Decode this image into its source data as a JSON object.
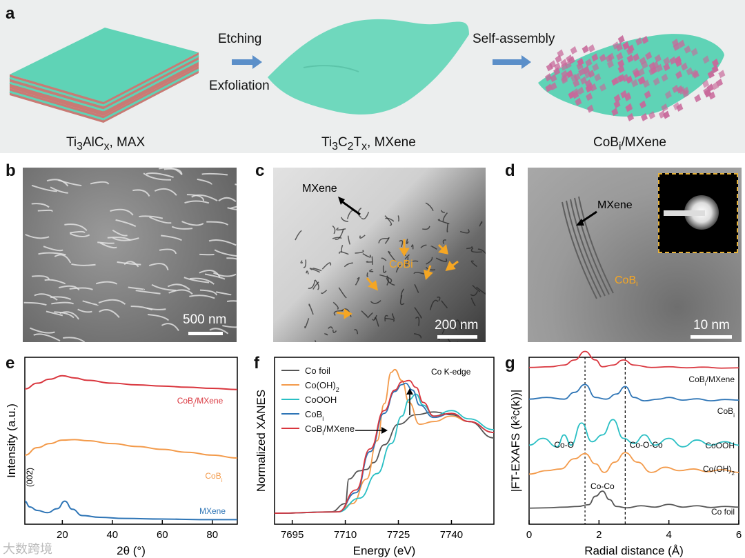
{
  "panel_labels": {
    "a": "a",
    "b": "b",
    "c": "c",
    "d": "d",
    "e": "e",
    "f": "f",
    "g": "g"
  },
  "schematic": {
    "step1_top": "Etching",
    "step1_bottom": "Exfoliation",
    "step2_top": "Self-assembly",
    "stage1": {
      "main": "Ti",
      "s1": "3",
      "mid": "AlC",
      "s2": "x",
      "tail": ", MAX"
    },
    "stage2": {
      "main": "Ti",
      "s1": "3",
      "mid": "C",
      "s2": "2",
      "mid2": "T",
      "s3": "x",
      "tail": ", MXene"
    },
    "stage3": {
      "main": "CoB",
      "s1": "i",
      "tail": "/MXene"
    },
    "colors": {
      "layer_teal": "#5fd3b6",
      "layer_red": "#c97a74",
      "sheet": "#6fd8bd",
      "particles": "#c8689a",
      "arrow": "#5b8fc9"
    }
  },
  "sem": {
    "scale": "500 nm"
  },
  "tem": {
    "annot_mxene": "MXene",
    "annot_cobi": "CoBi",
    "scale": "200 nm"
  },
  "hrtem": {
    "annot_mxene": "MXene",
    "annot_cobi_main": "CoB",
    "annot_cobi_sub": "i",
    "scale": "10 nm"
  },
  "watermark": "大数跨境",
  "chart_data": [
    {
      "panel": "e",
      "type": "line",
      "xlabel": "2θ (°)",
      "ylabel": "Intensity (a.u.)",
      "xlim": [
        5,
        90
      ],
      "xticks": [
        20,
        40,
        60,
        80
      ],
      "yticks": [],
      "annotation": "(002)",
      "series": [
        {
          "name": "CoB",
          "sub": "i",
          "suffix": "/MXene",
          "color": "#d9353d",
          "x": [
            5,
            10,
            15,
            20,
            25,
            30,
            40,
            50,
            60,
            70,
            80,
            90
          ],
          "y": [
            2.35,
            2.45,
            2.52,
            2.58,
            2.54,
            2.5,
            2.45,
            2.42,
            2.4,
            2.38,
            2.36,
            2.34
          ]
        },
        {
          "name": "CoB",
          "sub": "i",
          "suffix": "",
          "color": "#f39a4a",
          "x": [
            5,
            10,
            15,
            20,
            25,
            30,
            40,
            50,
            60,
            70,
            80,
            90
          ],
          "y": [
            1.2,
            1.33,
            1.4,
            1.46,
            1.47,
            1.45,
            1.4,
            1.35,
            1.3,
            1.25,
            1.2,
            1.15
          ]
        },
        {
          "name": "MXene",
          "sub": "",
          "suffix": "",
          "color": "#2e75b6",
          "x": [
            5,
            7,
            10,
            14,
            18,
            21,
            24,
            28,
            35,
            45,
            60,
            75,
            90
          ],
          "y": [
            0.4,
            0.3,
            0.24,
            0.2,
            0.27,
            0.4,
            0.26,
            0.15,
            0.12,
            0.1,
            0.09,
            0.08,
            0.08
          ]
        }
      ]
    },
    {
      "panel": "f",
      "type": "line",
      "xlabel": "Energy (eV)",
      "ylabel": "Normalized XANES",
      "xlim": [
        7690,
        7752
      ],
      "xticks": [
        7695,
        7710,
        7725,
        7740
      ],
      "yticks": [],
      "annotation": "Co K-edge",
      "series": [
        {
          "name": "Co foil",
          "color": "#555555",
          "x": [
            7690,
            7706,
            7710,
            7711,
            7714,
            7716,
            7718,
            7721,
            7725,
            7730,
            7735,
            7740,
            7745,
            7752
          ],
          "y": [
            0.05,
            0.06,
            0.12,
            0.3,
            0.36,
            0.37,
            0.42,
            0.55,
            0.7,
            0.77,
            0.79,
            0.77,
            0.72,
            0.6
          ]
        },
        {
          "name": "Co(OH)",
          "sub": "2",
          "color": "#f39a4a",
          "x": [
            7690,
            7708,
            7712,
            7716,
            7719,
            7721,
            7723,
            7724,
            7726,
            7728,
            7731,
            7735,
            7740,
            7745,
            7752
          ],
          "y": [
            0.05,
            0.06,
            0.12,
            0.3,
            0.58,
            0.85,
            1.08,
            1.1,
            1.02,
            0.86,
            0.7,
            0.72,
            0.76,
            0.72,
            0.64
          ]
        },
        {
          "name": "CoOOH",
          "color": "#29bfc4",
          "x": [
            7690,
            7708,
            7714,
            7719,
            7723,
            7726,
            7728,
            7730,
            7732,
            7735,
            7740,
            7745,
            7752
          ],
          "y": [
            0.05,
            0.06,
            0.16,
            0.34,
            0.56,
            0.76,
            0.88,
            0.92,
            0.84,
            0.76,
            0.8,
            0.74,
            0.66
          ]
        },
        {
          "name": "CoB",
          "sub": "i",
          "color": "#2e75b6",
          "x": [
            7690,
            7708,
            7713,
            7717,
            7721,
            7724,
            7726,
            7727,
            7729,
            7731,
            7735,
            7740,
            7745,
            7752
          ],
          "y": [
            0.05,
            0.06,
            0.2,
            0.5,
            0.78,
            0.94,
            0.99,
            1.0,
            0.95,
            0.84,
            0.75,
            0.78,
            0.72,
            0.64
          ]
        },
        {
          "name": "CoB",
          "sub": "i",
          "suffix": "/MXene",
          "color": "#d9353d",
          "x": [
            7690,
            7708,
            7713,
            7717,
            7721,
            7724,
            7726,
            7728,
            7730,
            7732,
            7735,
            7740,
            7745,
            7752
          ],
          "y": [
            0.05,
            0.06,
            0.22,
            0.52,
            0.8,
            0.95,
            1.01,
            1.02,
            0.97,
            0.86,
            0.76,
            0.78,
            0.72,
            0.64
          ]
        }
      ]
    },
    {
      "panel": "g",
      "type": "line",
      "xlabel": "Radial distance (Å)",
      "ylabel": "|FT-EXAFS (k³c(k))|",
      "xlim": [
        0,
        6
      ],
      "xticks": [
        0,
        2,
        4,
        6
      ],
      "yticks": [],
      "vlines": [
        1.6,
        2.75
      ],
      "annotations": [
        {
          "text": "Co-O",
          "x": 1.0
        },
        {
          "text": "Co-O-Co",
          "x": 3.35
        },
        {
          "text": "Co-Co",
          "x": 2.1
        }
      ],
      "series": [
        {
          "name": "CoB",
          "sub": "i",
          "suffix": "/MXene",
          "color": "#d9353d",
          "x": [
            0,
            0.6,
            1.0,
            1.3,
            1.6,
            1.9,
            2.1,
            2.4,
            2.7,
            3.0,
            3.5,
            4.0,
            4.5,
            5.0,
            5.5,
            6.0
          ],
          "y": [
            4.48,
            4.5,
            4.55,
            4.7,
            4.95,
            4.7,
            4.5,
            4.55,
            4.7,
            4.55,
            4.48,
            4.5,
            4.47,
            4.49,
            4.46,
            4.47
          ]
        },
        {
          "name": "CoB",
          "sub": "i",
          "color": "#2e75b6",
          "x": [
            0,
            0.5,
            1.0,
            1.3,
            1.6,
            1.9,
            2.2,
            2.5,
            2.75,
            3.0,
            3.3,
            3.7,
            4.0,
            4.4,
            4.8,
            5.2,
            5.6,
            6.0
          ],
          "y": [
            3.55,
            3.6,
            3.55,
            3.75,
            3.98,
            3.6,
            3.55,
            3.7,
            3.92,
            3.6,
            3.5,
            3.55,
            3.6,
            3.52,
            3.56,
            3.5,
            3.54,
            3.52
          ]
        },
        {
          "name": "CoOOH",
          "color": "#29bfc4",
          "x": [
            0,
            0.4,
            0.8,
            1.0,
            1.2,
            1.5,
            1.8,
            2.1,
            2.4,
            2.7,
            3.0,
            3.3,
            3.6,
            4.0,
            4.4,
            4.8,
            5.2,
            5.6,
            6.0
          ],
          "y": [
            2.2,
            2.4,
            2.15,
            2.5,
            2.2,
            2.85,
            2.3,
            2.5,
            2.95,
            2.4,
            2.25,
            2.5,
            2.2,
            2.4,
            2.15,
            2.35,
            2.2,
            2.3,
            2.2
          ]
        },
        {
          "name": "Co(OH)",
          "sub": "2",
          "color": "#f39a4a",
          "x": [
            0,
            0.5,
            0.9,
            1.3,
            1.6,
            1.9,
            2.15,
            2.45,
            2.75,
            3.1,
            3.5,
            3.9,
            4.3,
            4.7,
            5.1,
            5.5,
            6.0
          ],
          "y": [
            1.35,
            1.45,
            1.5,
            1.8,
            1.95,
            1.65,
            1.4,
            1.7,
            1.98,
            1.7,
            1.4,
            1.55,
            1.45,
            1.5,
            1.42,
            1.48,
            1.4
          ]
        },
        {
          "name": "Co foil",
          "color": "#555555",
          "x": [
            0,
            0.5,
            1.0,
            1.4,
            1.7,
            1.9,
            2.1,
            2.3,
            2.5,
            2.8,
            3.2,
            3.6,
            4.0,
            4.4,
            4.8,
            5.2,
            5.6,
            6.0
          ],
          "y": [
            0.35,
            0.36,
            0.38,
            0.4,
            0.45,
            0.7,
            0.85,
            0.6,
            0.4,
            0.36,
            0.42,
            0.38,
            0.46,
            0.38,
            0.42,
            0.37,
            0.4,
            0.38
          ]
        }
      ],
      "series_labels": [
        {
          "name": "CoB",
          "sub": "i",
          "suffix": "/MXene"
        },
        {
          "name": "CoB",
          "sub": "i",
          "suffix": ""
        },
        {
          "name": "CoOOH",
          "sub": "",
          "suffix": ""
        },
        {
          "name": "Co(OH)",
          "sub": "2",
          "suffix": ""
        },
        {
          "name": "Co foil",
          "sub": "",
          "suffix": ""
        }
      ]
    }
  ]
}
